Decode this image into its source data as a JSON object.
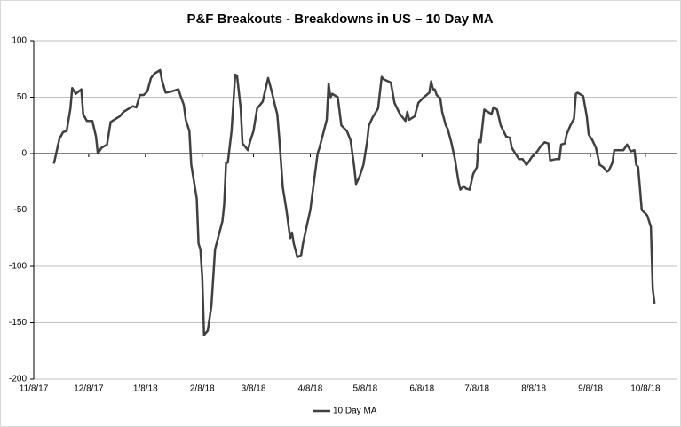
{
  "chart_data": {
    "type": "line",
    "title": "P&F Breakouts - Breakdowns in US – 10 Day MA",
    "x": [
      "2017-11-19",
      "2017-11-22",
      "2017-11-24",
      "2017-11-26",
      "2017-11-28",
      "2017-11-29",
      "2017-12-01",
      "2017-12-04",
      "2017-12-05",
      "2017-12-07",
      "2017-12-10",
      "2017-12-12",
      "2017-12-13",
      "2017-12-15",
      "2017-12-18",
      "2017-12-20",
      "2017-12-23",
      "2017-12-25",
      "2017-12-27",
      "2017-12-30",
      "2018-01-01",
      "2018-01-03",
      "2018-01-05",
      "2018-01-07",
      "2018-01-09",
      "2018-01-11",
      "2018-01-13",
      "2018-01-16",
      "2018-01-17",
      "2018-01-19",
      "2018-01-22",
      "2018-01-26",
      "2018-01-27",
      "2018-01-29",
      "2018-01-30",
      "2018-02-01",
      "2018-02-02",
      "2018-02-03",
      "2018-02-05",
      "2018-02-06",
      "2018-02-07",
      "2018-02-08",
      "2018-02-09",
      "2018-02-11",
      "2018-02-13",
      "2018-02-15",
      "2018-02-19",
      "2018-02-20",
      "2018-02-21",
      "2018-02-22",
      "2018-02-24",
      "2018-02-26",
      "2018-02-27",
      "2018-03-01",
      "2018-03-02",
      "2018-03-05",
      "2018-03-06",
      "2018-03-08",
      "2018-03-10",
      "2018-03-13",
      "2018-03-16",
      "2018-03-18",
      "2018-03-20",
      "2018-03-21",
      "2018-03-22",
      "2018-03-24",
      "2018-03-26",
      "2018-03-28",
      "2018-03-29",
      "2018-03-30",
      "2018-04-01",
      "2018-04-03",
      "2018-04-04",
      "2018-04-06",
      "2018-04-08",
      "2018-04-10",
      "2018-04-12",
      "2018-04-13",
      "2018-04-17",
      "2018-04-18",
      "2018-04-19",
      "2018-04-20",
      "2018-04-23",
      "2018-04-25",
      "2018-04-28",
      "2018-04-30",
      "2018-05-02",
      "2018-05-03",
      "2018-05-05",
      "2018-05-07",
      "2018-05-09",
      "2018-05-10",
      "2018-05-12",
      "2018-05-15",
      "2018-05-17",
      "2018-05-18",
      "2018-05-22",
      "2018-05-24",
      "2018-05-27",
      "2018-05-30",
      "2018-05-31",
      "2018-06-01",
      "2018-06-04",
      "2018-06-06",
      "2018-06-09",
      "2018-06-12",
      "2018-06-13",
      "2018-06-14",
      "2018-06-15",
      "2018-06-16",
      "2018-06-18",
      "2018-06-19",
      "2018-06-21",
      "2018-06-22",
      "2018-06-24",
      "2018-06-26",
      "2018-06-28",
      "2018-06-29",
      "2018-07-01",
      "2018-07-02",
      "2018-07-04",
      "2018-07-06",
      "2018-07-08",
      "2018-07-09",
      "2018-07-10",
      "2018-07-12",
      "2018-07-14",
      "2018-07-16",
      "2018-07-17",
      "2018-07-19",
      "2018-07-21",
      "2018-07-24",
      "2018-07-26",
      "2018-07-27",
      "2018-07-29",
      "2018-07-31",
      "2018-08-02",
      "2018-08-04",
      "2018-08-05",
      "2018-08-07",
      "2018-08-10",
      "2018-08-12",
      "2018-08-14",
      "2018-08-16",
      "2018-08-17",
      "2018-08-20",
      "2018-08-22",
      "2018-08-23",
      "2018-08-25",
      "2018-08-26",
      "2018-08-28",
      "2018-08-30",
      "2018-08-31",
      "2018-09-01",
      "2018-09-04",
      "2018-09-06",
      "2018-09-07",
      "2018-09-09",
      "2018-09-11",
      "2018-09-13",
      "2018-09-15",
      "2018-09-17",
      "2018-09-18",
      "2018-09-20",
      "2018-09-21",
      "2018-09-24",
      "2018-09-26",
      "2018-09-28",
      "2018-09-30",
      "2018-10-02",
      "2018-10-03",
      "2018-10-04",
      "2018-10-05",
      "2018-10-06",
      "2018-10-08",
      "2018-10-09",
      "2018-10-11",
      "2018-10-12",
      "2018-10-13"
    ],
    "series": [
      {
        "name": "10 Day MA",
        "color": "#404040",
        "values": [
          -9,
          13,
          19,
          20,
          40,
          58,
          53,
          57,
          35,
          29,
          29,
          15,
          0,
          5,
          8,
          28,
          31,
          33,
          37,
          40,
          42,
          41,
          52,
          52,
          55,
          67,
          71,
          74,
          65,
          54,
          55,
          57,
          52,
          43,
          30,
          20,
          -10,
          -20,
          -40,
          -80,
          -85,
          -110,
          -161,
          -157,
          -135,
          -85,
          -60,
          -45,
          -8,
          -8,
          20,
          70,
          69,
          40,
          9,
          3,
          10,
          20,
          40,
          46,
          67,
          55,
          41,
          35,
          15,
          -30,
          -50,
          -75,
          -70,
          -80,
          -92,
          -90,
          -80,
          -65,
          -50,
          -25,
          0,
          5,
          30,
          62,
          50,
          53,
          50,
          25,
          20,
          12,
          -12,
          -27,
          -20,
          -10,
          10,
          25,
          32,
          40,
          68,
          66,
          63,
          45,
          35,
          29,
          37,
          30,
          33,
          45,
          50,
          54,
          64,
          57,
          57,
          52,
          49,
          37,
          25,
          22,
          10,
          -5,
          -25,
          -32,
          -29,
          -31,
          -32,
          -18,
          -12,
          12,
          10,
          39,
          37,
          35,
          41,
          39,
          25,
          15,
          14,
          5,
          0,
          -5,
          -5,
          -10,
          -8,
          -3,
          2,
          7,
          10,
          9,
          -6,
          -5,
          -5,
          8,
          9,
          17,
          25,
          31,
          53,
          54,
          51,
          33,
          17,
          12,
          5,
          -10,
          -12,
          -16,
          -15,
          -8,
          3,
          3,
          3,
          8,
          2,
          3,
          -10,
          -12,
          -30,
          -50,
          -53,
          -55,
          -65,
          -120,
          -133
        ]
      }
    ],
    "xlim": [
      "2017-11-08",
      "2018-10-25"
    ],
    "xticks": [
      {
        "value": "2017-11-08",
        "label": "11/8/17"
      },
      {
        "value": "2017-12-08",
        "label": "12/8/17"
      },
      {
        "value": "2018-01-08",
        "label": "1/8/18"
      },
      {
        "value": "2018-02-08",
        "label": "2/8/18"
      },
      {
        "value": "2018-03-08",
        "label": "3/8/18"
      },
      {
        "value": "2018-04-08",
        "label": "4/8/18"
      },
      {
        "value": "2018-05-08",
        "label": "5/8/18"
      },
      {
        "value": "2018-06-08",
        "label": "6/8/18"
      },
      {
        "value": "2018-07-08",
        "label": "7/8/18"
      },
      {
        "value": "2018-08-08",
        "label": "8/8/18"
      },
      {
        "value": "2018-09-08",
        "label": "9/8/18"
      },
      {
        "value": "2018-10-08",
        "label": "10/8/18"
      }
    ],
    "ylim": [
      -200,
      100
    ],
    "yticks": [
      -200,
      -150,
      -100,
      -50,
      0,
      50,
      100
    ],
    "grid": true,
    "legend": "bottom"
  }
}
